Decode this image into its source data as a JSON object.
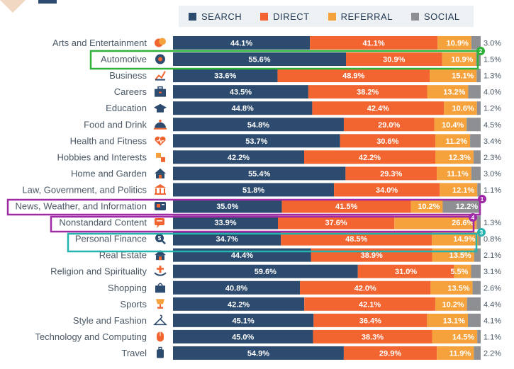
{
  "colors": {
    "search": "#2d4b6e",
    "direct": "#f26430",
    "referral": "#f6a23c",
    "social": "#8d8f92",
    "label": "#4a5866",
    "icon": "#2d4b6e",
    "icon_accent": "#f26430",
    "box_green": "#2fb13a",
    "box_purple": "#a02aa6",
    "box_teal": "#25b3ae"
  },
  "legend": [
    {
      "key": "search",
      "label": "SEARCH"
    },
    {
      "key": "direct",
      "label": "DIRECT"
    },
    {
      "key": "referral",
      "label": "REFERRAL"
    },
    {
      "key": "social",
      "label": "SOCIAL"
    }
  ],
  "chart_data": {
    "type": "bar",
    "orientation": "horizontal",
    "stacked": true,
    "title": "",
    "xlabel": "",
    "ylabel": "",
    "categories": [
      "Arts and Entertainment",
      "Automotive",
      "Business",
      "Careers",
      "Education",
      "Food and Drink",
      "Health and Fitness",
      "Hobbies and Interests",
      "Home and Garden",
      "Law, Government, and Politics",
      "News, Weather, and Information",
      "Nonstandard Content",
      "Personal Finance",
      "Real Estate",
      "Religion and Spirituality",
      "Shopping",
      "Sports",
      "Style and Fashion",
      "Technology and Computing",
      "Travel"
    ],
    "series": [
      {
        "name": "SEARCH",
        "key": "search",
        "values": [
          44.1,
          55.6,
          33.6,
          43.5,
          44.8,
          54.8,
          53.7,
          42.2,
          55.4,
          51.8,
          35.0,
          33.9,
          34.7,
          44.4,
          59.6,
          40.8,
          42.2,
          45.1,
          45.0,
          54.9
        ]
      },
      {
        "name": "DIRECT",
        "key": "direct",
        "values": [
          41.1,
          30.9,
          48.9,
          38.2,
          42.4,
          29.0,
          30.6,
          42.2,
          29.3,
          34.0,
          41.5,
          37.6,
          48.5,
          38.9,
          31.0,
          42.0,
          42.1,
          36.4,
          38.3,
          29.9
        ]
      },
      {
        "name": "REFERRAL",
        "key": "referral",
        "values": [
          10.9,
          10.9,
          15.1,
          13.2,
          10.6,
          10.4,
          11.2,
          12.3,
          11.1,
          12.1,
          10.2,
          26.6,
          14.9,
          13.5,
          5.5,
          13.5,
          10.2,
          13.1,
          14.5,
          11.9
        ]
      },
      {
        "name": "SOCIAL",
        "key": "social",
        "values": [
          3.0,
          1.5,
          1.3,
          4.0,
          1.2,
          4.5,
          3.4,
          2.3,
          3.0,
          1.1,
          12.2,
          1.3,
          0.8,
          2.1,
          3.1,
          2.6,
          4.4,
          4.1,
          1.1,
          2.2
        ]
      }
    ],
    "labels": {
      "search": [
        "44.1%",
        "55.6%",
        "33.6%",
        "43.5%",
        "44.8%",
        "54.8%",
        "53.7%",
        "42.2%",
        "55.4%",
        "51.8%",
        "35.0%",
        "33.9%",
        "34.7%",
        "44.4%",
        "59.6%",
        "40.8%",
        "42.2%",
        "45.1%",
        "45.0%",
        "54.9%"
      ],
      "direct": [
        "41.1%",
        "30.9%",
        "48.9%",
        "38.2%",
        "42.4%",
        "29.0%",
        "30.6%",
        "42.2%",
        "29.3%",
        "34.0%",
        "41.5%",
        "37.6%",
        "48.5%",
        "38.9%",
        "31.0%",
        "42.0%",
        "42.1%",
        "36.4%",
        "38.3%",
        "29.9%"
      ],
      "referral": [
        "10.9%",
        "10.9%",
        "15.1%",
        "13.2%",
        "10.6%",
        "10.4%",
        "11.2%",
        "12.3%",
        "11.1%",
        "12.1%",
        "10.2%",
        "26.6%",
        "14.9%",
        "13.5%",
        "5.5%",
        "13.5%",
        "10.2%",
        "13.1%",
        "14.5%",
        "11.9%"
      ],
      "social_inside": [
        "",
        "",
        "",
        "",
        "",
        "",
        "",
        "",
        "",
        "",
        "12.2%",
        "",
        "",
        "",
        "",
        "",
        "",
        "",
        "",
        ""
      ],
      "social_outside": [
        "3.0%",
        "1.5%",
        "1.3%",
        "4.0%",
        "1.2%",
        "4.5%",
        "3.4%",
        "2.3%",
        "3.0%",
        "1.1%",
        "",
        "1.3%",
        "0.8%",
        "2.1%",
        "3.1%",
        "2.6%",
        "4.4%",
        "4.1%",
        "1.1%",
        "2.2%"
      ]
    },
    "icons": [
      "theater-masks-icon",
      "steering-wheel-icon",
      "growth-chart-icon",
      "briefcase-icon",
      "graduation-cap-icon",
      "cloche-icon",
      "heart-pulse-icon",
      "puzzle-icon",
      "house-icon",
      "courthouse-icon",
      "newspaper-icon",
      "chat-bubble-icon",
      "coin-magnifier-icon",
      "house-icon",
      "hands-icon",
      "shopping-bag-icon",
      "trophy-icon",
      "hanger-icon",
      "computer-mouse-icon",
      "luggage-icon"
    ],
    "xlim": [
      0,
      100
    ],
    "grid": false,
    "legend_position": "top"
  },
  "annotations": [
    {
      "name": "automotive",
      "badge": "2",
      "color_key": "box_green"
    },
    {
      "name": "news",
      "badge": "1",
      "color_key": "box_purple"
    },
    {
      "name": "nonstandard",
      "badge": "4",
      "color_key": "box_purple"
    },
    {
      "name": "personal-finance",
      "badge": "3",
      "color_key": "box_teal"
    }
  ]
}
